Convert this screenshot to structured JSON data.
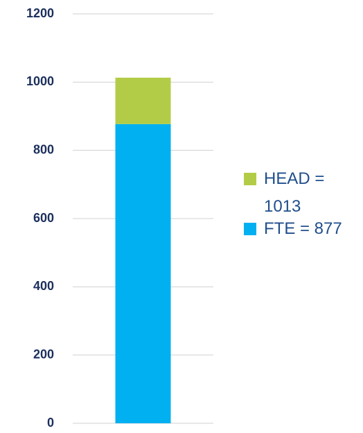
{
  "chart_data": {
    "type": "stacked_bar",
    "categories": [
      null
    ],
    "series": [
      {
        "name": "FTE = 877",
        "color": "#00b0f0",
        "values": [
          877
        ]
      },
      {
        "name": "HEAD = 1013",
        "color": "#b3cc47",
        "values": [
          136
        ]
      }
    ],
    "ylim": [
      0,
      1200
    ],
    "yticks": [
      0,
      200,
      400,
      600,
      800,
      1000,
      1200
    ],
    "grid": true,
    "legend": "right"
  }
}
